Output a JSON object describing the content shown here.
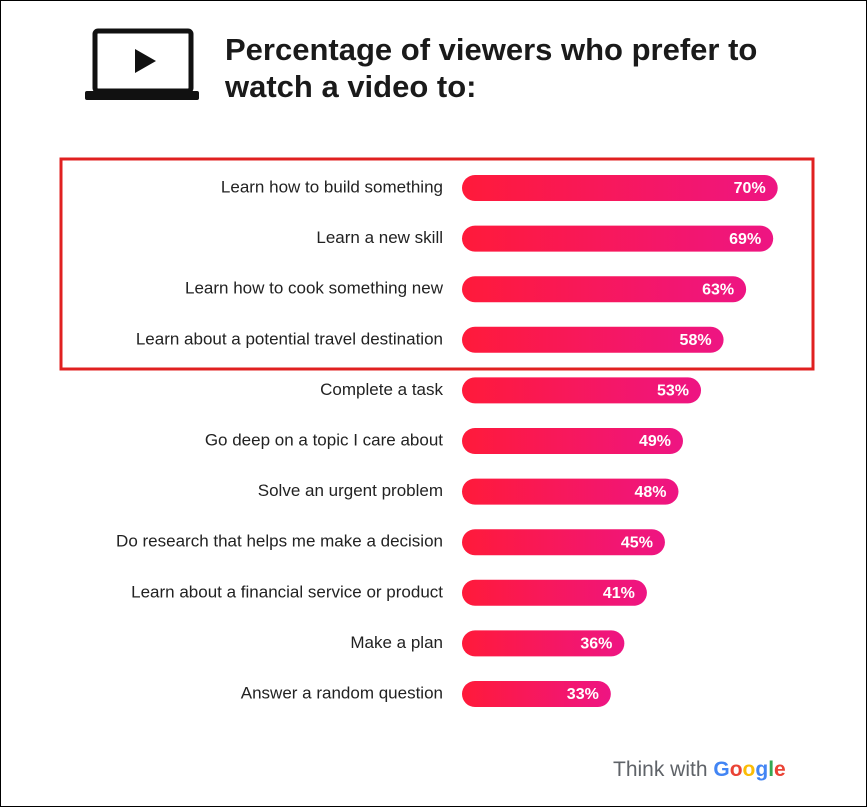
{
  "chart_data": {
    "type": "bar",
    "orientation": "horizontal",
    "title": "Percentage of viewers who prefer to watch a video to:",
    "categories": [
      "Learn how to build something",
      "Learn a new skill",
      "Learn how to cook something new",
      "Learn about a potential travel destination",
      "Complete a task",
      "Go deep on a topic I care about",
      "Solve an urgent problem",
      "Do research that helps me make a decision",
      "Learn about a financial service or product",
      "Make a plan",
      "Answer a random question"
    ],
    "values": [
      70,
      69,
      63,
      58,
      53,
      49,
      48,
      45,
      41,
      36,
      33
    ],
    "value_labels": [
      "70%",
      "69%",
      "63%",
      "58%",
      "53%",
      "49%",
      "48%",
      "45%",
      "41%",
      "36%",
      "33%"
    ],
    "colors": [
      "#ff1a3a",
      "#ee1583"
    ],
    "footer": "Think with",
    "brand": "Google"
  }
}
